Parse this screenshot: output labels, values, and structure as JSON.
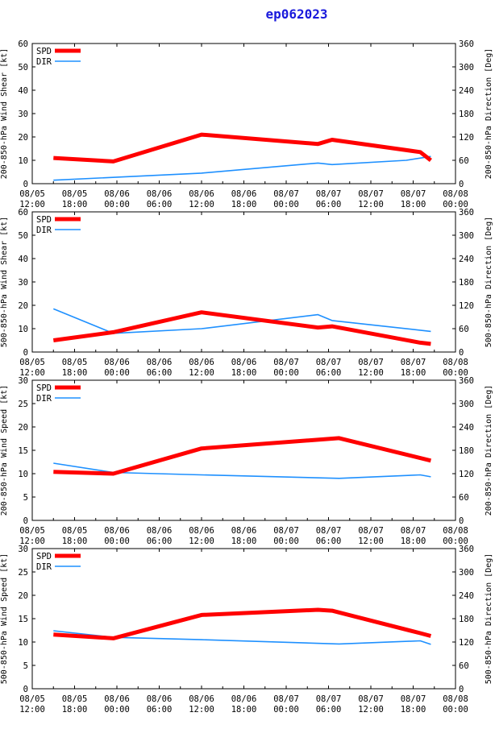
{
  "title": "ep062023",
  "colors": {
    "spd": "#ff0000",
    "dir": "#1e90ff",
    "axis": "#000000"
  },
  "time_labels": [
    [
      "08/05",
      "12:00"
    ],
    [
      "08/05",
      "18:00"
    ],
    [
      "08/06",
      "00:00"
    ],
    [
      "08/06",
      "06:00"
    ],
    [
      "08/06",
      "12:00"
    ],
    [
      "08/06",
      "18:00"
    ],
    [
      "08/07",
      "00:00"
    ],
    [
      "08/07",
      "06:00"
    ],
    [
      "08/07",
      "12:00"
    ],
    [
      "08/07",
      "18:00"
    ],
    [
      "08/08",
      "00:00"
    ]
  ],
  "chart_data": [
    {
      "type": "line",
      "ylabel_left": "200-850-hPa Wind Shear [kt]",
      "ylabel_right": "200-850-hPa Direction [Deg]",
      "ylim_left": [
        0,
        60
      ],
      "yticks_left": [
        0,
        10,
        20,
        30,
        40,
        50,
        60
      ],
      "ylim_right": [
        0,
        360
      ],
      "yticks_right": [
        0,
        60,
        120,
        180,
        240,
        300,
        360
      ],
      "legend": [
        "SPD",
        "DIR"
      ],
      "spd": {
        "x": [
          6,
          23,
          48,
          81,
          85,
          110,
          113
        ],
        "y": [
          11,
          9.5,
          21,
          17,
          18.8,
          13.5,
          10
        ]
      },
      "dir": {
        "x": [
          6,
          48,
          81,
          85,
          106,
          113
        ],
        "y": [
          9,
          27,
          53,
          49,
          60,
          70
        ]
      }
    },
    {
      "type": "line",
      "ylabel_left": "500-850-hPa Wind Shear [kt]",
      "ylabel_right": "500-850-hPa Direction [Deg]",
      "ylim_left": [
        0,
        60
      ],
      "yticks_left": [
        0,
        10,
        20,
        30,
        40,
        50,
        60
      ],
      "ylim_right": [
        0,
        360
      ],
      "yticks_right": [
        0,
        60,
        120,
        180,
        240,
        300,
        360
      ],
      "legend": [
        "SPD",
        "DIR"
      ],
      "spd": {
        "x": [
          6,
          23,
          48,
          81,
          85,
          110,
          113
        ],
        "y": [
          5,
          8.5,
          17,
          10.5,
          11,
          4,
          3.5
        ]
      },
      "dir": {
        "x": [
          6,
          23,
          48,
          81,
          85,
          113
        ],
        "y": [
          111,
          48,
          60,
          96,
          81,
          53
        ]
      }
    },
    {
      "type": "line",
      "ylabel_left": "200-850-hPa Wind Speed [kt]",
      "ylabel_right": "200-850-hPa Direction [Deg]",
      "ylim_left": [
        0,
        30
      ],
      "yticks_left": [
        0,
        5,
        10,
        15,
        20,
        25,
        30
      ],
      "ylim_right": [
        0,
        360
      ],
      "yticks_right": [
        0,
        60,
        120,
        180,
        240,
        300,
        360
      ],
      "legend": [
        "SPD",
        "DIR"
      ],
      "spd": {
        "x": [
          6,
          23,
          48,
          87,
          113
        ],
        "y": [
          10.4,
          10,
          15.4,
          17.6,
          12.8
        ]
      },
      "dir": {
        "x": [
          6,
          23,
          48,
          87,
          110,
          113
        ],
        "y": [
          147,
          123,
          117,
          108,
          117,
          112
        ]
      }
    },
    {
      "type": "line",
      "ylabel_left": "500-850-hPa Wind Speed [kt]",
      "ylabel_right": "500-850-hPa Direction [Deg]",
      "ylim_left": [
        0,
        30
      ],
      "yticks_left": [
        0,
        5,
        10,
        15,
        20,
        25,
        30
      ],
      "ylim_right": [
        0,
        360
      ],
      "yticks_right": [
        0,
        60,
        120,
        180,
        240,
        300,
        360
      ],
      "legend": [
        "SPD",
        "DIR"
      ],
      "spd": {
        "x": [
          6,
          23,
          48,
          81,
          85,
          110,
          113
        ],
        "y": [
          11.6,
          10.8,
          15.8,
          16.9,
          16.7,
          11.9,
          11.3
        ]
      },
      "dir": {
        "x": [
          6,
          23,
          48,
          87,
          110,
          113
        ],
        "y": [
          149,
          132,
          126,
          115,
          123,
          114
        ]
      }
    }
  ]
}
